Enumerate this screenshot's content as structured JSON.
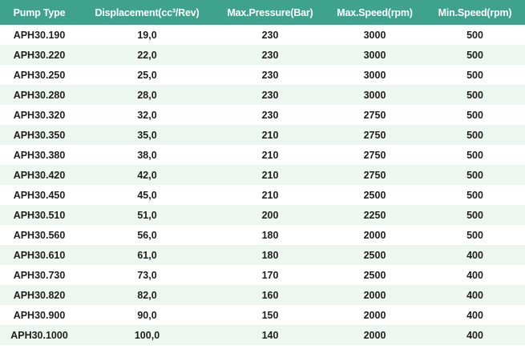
{
  "table": {
    "headers": [
      "Pump Type",
      "Displacement(cc³/Rev)",
      "Max.Pressure(Bar)",
      "Max.Speed(rpm)",
      "Min.Speed(rpm)"
    ],
    "rows": [
      [
        "APH30.190",
        "19,0",
        "230",
        "3000",
        "500"
      ],
      [
        "APH30.220",
        "22,0",
        "230",
        "3000",
        "500"
      ],
      [
        "APH30.250",
        "25,0",
        "230",
        "3000",
        "500"
      ],
      [
        "APH30.280",
        "28,0",
        "230",
        "3000",
        "500"
      ],
      [
        "APH30.320",
        "32,0",
        "230",
        "2750",
        "500"
      ],
      [
        "APH30.350",
        "35,0",
        "210",
        "2750",
        "500"
      ],
      [
        "APH30.380",
        "38,0",
        "210",
        "2750",
        "500"
      ],
      [
        "APH30.420",
        "42,0",
        "210",
        "2750",
        "500"
      ],
      [
        "APH30.450",
        "45,0",
        "210",
        "2500",
        "500"
      ],
      [
        "APH30.510",
        "51,0",
        "200",
        "2250",
        "500"
      ],
      [
        "APH30.560",
        "56,0",
        "180",
        "2000",
        "500"
      ],
      [
        "APH30.610",
        "61,0",
        "180",
        "2500",
        "400"
      ],
      [
        "APH30.730",
        "73,0",
        "170",
        "2500",
        "400"
      ],
      [
        "APH30.820",
        "82,0",
        "160",
        "2000",
        "400"
      ],
      [
        "APH30.900",
        "90,0",
        "150",
        "2000",
        "400"
      ],
      [
        "APH30.1000",
        "100,0",
        "140",
        "2000",
        "400"
      ]
    ]
  },
  "colors": {
    "header_bg": "#3fa28c",
    "header_text": "#ffffff",
    "row_stripe": "#eef6f1",
    "row_text": "#1e1e1e"
  }
}
